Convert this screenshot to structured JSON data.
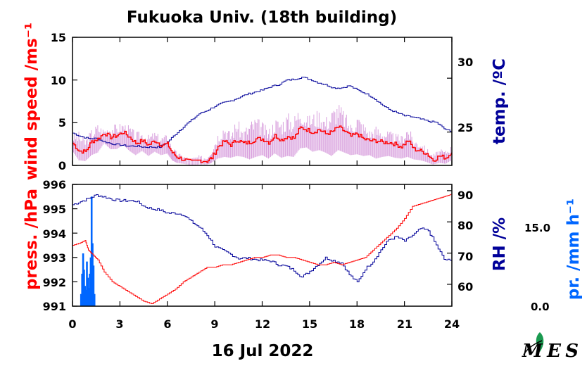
{
  "colors": {
    "wind_mean": "#ff0000",
    "wind_gust": "#d9a0de",
    "temperature": "#000099",
    "pressure": "#ff0000",
    "humidity": "#000099",
    "precipitation": "#0066ff"
  },
  "logo": {
    "icon": "leaf-logo-icon",
    "text": "MES"
  },
  "chart_data": [
    {
      "type": "line",
      "title": "Fukuoka Univ. (18th building)",
      "date_label": "16 Jul 2022",
      "xlabel": "",
      "xlim": [
        0,
        24
      ],
      "xticks": [
        0,
        3,
        6,
        9,
        12,
        15,
        18,
        21,
        24
      ],
      "xtick_labels": [
        "0",
        "3",
        "6",
        "9",
        "12",
        "15",
        "18",
        "21",
        "24"
      ],
      "ylabel": "wind speed /ms⁻¹",
      "ylim": [
        0,
        15
      ],
      "yticks": [
        0,
        5,
        10,
        15
      ],
      "ytick_labels": [
        "0",
        "5",
        "10",
        "15"
      ],
      "y2label": "temp. /ºC",
      "y2lim": [
        21.9,
        33.8
      ],
      "y2ticks": [
        25,
        30
      ],
      "y2tick_labels": [
        "25",
        "30"
      ],
      "series": [
        {
          "role": "wind_mean",
          "axis": "left",
          "x": [
            0,
            0.4,
            0.8,
            1.2,
            1.6,
            2.0,
            2.4,
            2.8,
            3.2,
            3.6,
            4.0,
            4.4,
            4.8,
            5.2,
            5.6,
            6.0,
            6.3,
            6.6,
            7.0,
            7.5,
            8.0,
            8.5,
            8.8,
            9.2,
            9.6,
            10.0,
            10.4,
            10.8,
            11.2,
            11.6,
            12.0,
            12.4,
            12.8,
            13.2,
            13.6,
            14.0,
            14.4,
            14.8,
            15.2,
            15.6,
            16.0,
            16.4,
            16.8,
            17.2,
            17.6,
            18.0,
            18.4,
            18.8,
            19.2,
            19.6,
            20.0,
            20.4,
            20.8,
            21.2,
            21.6,
            22.0,
            22.4,
            22.8,
            23.2,
            23.6,
            24.0
          ],
          "values": [
            2.6,
            1.7,
            1.6,
            2.8,
            3.1,
            3.8,
            3.3,
            3.5,
            3.9,
            3.3,
            2.6,
            2.9,
            2.4,
            2.9,
            2.4,
            2.5,
            1.5,
            1.0,
            0.7,
            0.4,
            0.6,
            0.5,
            0.9,
            2.2,
            2.8,
            2.4,
            3.0,
            2.6,
            2.7,
            3.1,
            3.1,
            2.7,
            3.5,
            3.0,
            3.4,
            3.2,
            4.4,
            4.2,
            3.9,
            4.2,
            3.7,
            3.9,
            4.5,
            4.0,
            3.4,
            3.7,
            3.1,
            2.9,
            2.9,
            2.7,
            2.7,
            2.5,
            2.2,
            2.9,
            1.9,
            1.7,
            1.4,
            0.6,
            1.1,
            0.9,
            1.5
          ]
        },
        {
          "role": "wind_gust_range",
          "axis": "left",
          "x": [
            0,
            0.4,
            0.8,
            1.2,
            1.6,
            2.0,
            2.4,
            2.8,
            3.2,
            3.6,
            4.0,
            4.4,
            4.8,
            5.2,
            5.6,
            6.0,
            6.3,
            6.6,
            7.0,
            7.5,
            8.0,
            8.5,
            8.8,
            9.2,
            9.6,
            10.0,
            10.4,
            10.8,
            11.2,
            11.6,
            12.0,
            12.4,
            12.8,
            13.2,
            13.6,
            14.0,
            14.4,
            14.8,
            15.2,
            15.6,
            16.0,
            16.4,
            16.8,
            17.2,
            17.6,
            18.0,
            18.4,
            18.8,
            19.2,
            19.6,
            20.0,
            20.4,
            20.8,
            21.2,
            21.6,
            22.0,
            22.4,
            22.8,
            23.2,
            23.6,
            24.0
          ],
          "high": [
            3.6,
            4.0,
            3.2,
            4.3,
            5.0,
            4.3,
            4.8,
            4.9,
            5.1,
            4.7,
            4.0,
            4.0,
            3.6,
            4.0,
            3.5,
            3.7,
            2.3,
            1.6,
            1.2,
            0.9,
            1.2,
            1.0,
            2.0,
            4.0,
            5.1,
            4.0,
            5.6,
            4.2,
            5.3,
            5.8,
            5.2,
            4.3,
            5.7,
            5.6,
            6.3,
            5.9,
            7.3,
            5.8,
            6.3,
            6.7,
            5.8,
            6.8,
            7.6,
            6.5,
            5.1,
            6.3,
            5.2,
            4.3,
            4.8,
            4.3,
            4.1,
            3.8,
            3.6,
            4.8,
            3.2,
            2.9,
            2.1,
            1.3,
            1.9,
            1.8,
            2.4
          ],
          "low": [
            1.7,
            0.6,
            0.5,
            1.2,
            1.5,
            2.6,
            1.9,
            1.9,
            2.4,
            1.7,
            1.2,
            1.7,
            1.1,
            1.6,
            1.2,
            1.4,
            0.6,
            0.3,
            0.2,
            0.0,
            0.1,
            0.1,
            0.3,
            0.8,
            1.0,
            0.9,
            1.1,
            1.0,
            0.7,
            1.0,
            1.2,
            0.8,
            1.4,
            0.9,
            1.1,
            1.0,
            2.0,
            2.1,
            1.6,
            1.8,
            1.5,
            1.1,
            1.8,
            1.5,
            1.2,
            1.3,
            1.1,
            1.2,
            0.8,
            1.0,
            1.1,
            0.9,
            0.8,
            1.0,
            0.7,
            0.6,
            0.4,
            0.1,
            0.3,
            0.2,
            0.6
          ]
        },
        {
          "role": "temperature",
          "axis": "right",
          "x": [
            0,
            0.5,
            1.0,
            1.5,
            2.0,
            2.5,
            3.0,
            3.5,
            4.0,
            4.5,
            5.0,
            5.5,
            6.0,
            6.5,
            7.0,
            7.5,
            8.0,
            8.5,
            9.0,
            9.5,
            10.0,
            10.5,
            11.0,
            11.5,
            12.0,
            12.5,
            13.0,
            13.5,
            14.0,
            14.5,
            15.0,
            15.5,
            16.0,
            16.5,
            17.0,
            17.5,
            18.0,
            18.5,
            19.0,
            19.5,
            20.0,
            20.5,
            21.0,
            21.5,
            22.0,
            22.5,
            23.0,
            23.5,
            24.0
          ],
          "values": [
            24.9,
            24.6,
            24.4,
            24.4,
            24.1,
            23.9,
            23.8,
            23.7,
            23.7,
            23.6,
            23.6,
            23.6,
            24.1,
            24.8,
            25.5,
            26.1,
            26.7,
            27.0,
            27.4,
            27.7,
            27.9,
            28.2,
            28.5,
            28.7,
            28.9,
            29.2,
            29.4,
            29.8,
            29.9,
            30.1,
            29.9,
            29.6,
            29.4,
            29.1,
            29.1,
            29.3,
            28.9,
            28.6,
            28.2,
            27.6,
            27.1,
            26.8,
            26.5,
            26.4,
            26.2,
            26.0,
            25.9,
            25.3,
            25.0
          ]
        }
      ]
    },
    {
      "type": "line",
      "xlabel": "",
      "xlim": [
        0,
        24
      ],
      "xticks": [
        0,
        3,
        6,
        9,
        12,
        15,
        18,
        21,
        24
      ],
      "xtick_labels": [
        "0",
        "3",
        "6",
        "9",
        "12",
        "15",
        "18",
        "21",
        "24"
      ],
      "ylabel": "press. /hPa",
      "ylim": [
        991,
        996
      ],
      "yticks": [
        991,
        992,
        993,
        994,
        995,
        996
      ],
      "ytick_labels": [
        "991",
        "992",
        "993",
        "994",
        "995",
        "996"
      ],
      "y2label": "RH /%",
      "y2lim": [
        53,
        92
      ],
      "y2ticks": [
        60,
        70,
        80,
        90
      ],
      "y2tick_labels": [
        "60",
        "70",
        "80",
        "90"
      ],
      "y3label": "pr. /mm h⁻¹",
      "y3tick_labels": [
        "0.0",
        "15.0"
      ],
      "series": [
        {
          "role": "pressure",
          "axis": "left",
          "x": [
            0,
            0.5,
            0.8,
            1.0,
            1.3,
            1.6,
            2.0,
            2.5,
            3.0,
            3.5,
            4.0,
            4.5,
            5.0,
            5.5,
            6.0,
            6.5,
            7.0,
            7.5,
            8.0,
            8.5,
            9.0,
            9.5,
            10.0,
            10.5,
            11.0,
            11.5,
            12.0,
            12.5,
            13.0,
            13.5,
            14.0,
            14.5,
            15.0,
            15.5,
            16.0,
            16.5,
            17.0,
            17.5,
            18.0,
            18.5,
            19.0,
            19.5,
            20.0,
            20.5,
            21.0,
            21.5,
            22.0,
            22.5,
            23.0,
            23.5,
            24.0
          ],
          "values": [
            993.5,
            993.6,
            993.7,
            993.3,
            993.1,
            992.9,
            992.4,
            992.0,
            991.8,
            991.6,
            991.4,
            991.2,
            991.1,
            991.3,
            991.5,
            991.7,
            992.0,
            992.2,
            992.4,
            992.6,
            992.6,
            992.7,
            992.7,
            992.8,
            992.9,
            993.0,
            993.0,
            993.1,
            993.1,
            993.0,
            993.0,
            992.9,
            992.8,
            992.7,
            992.7,
            992.8,
            992.7,
            992.8,
            992.9,
            993.0,
            993.3,
            993.6,
            993.9,
            994.2,
            994.6,
            995.1,
            995.2,
            995.3,
            995.4,
            995.5,
            995.6
          ]
        },
        {
          "role": "humidity",
          "axis": "right",
          "x": [
            0,
            0.5,
            1.0,
            1.5,
            2.0,
            2.5,
            3.0,
            3.5,
            4.0,
            4.5,
            5.0,
            5.5,
            6.0,
            6.5,
            7.0,
            7.5,
            8.0,
            8.5,
            9.0,
            9.5,
            10.0,
            10.5,
            11.0,
            11.5,
            12.0,
            12.5,
            13.0,
            13.5,
            14.0,
            14.5,
            15.0,
            15.5,
            16.0,
            16.5,
            17.0,
            17.5,
            18.0,
            18.5,
            19.0,
            19.5,
            20.0,
            20.5,
            21.0,
            21.5,
            22.0,
            22.5,
            23.0,
            23.5,
            24.0
          ],
          "values": [
            85.5,
            86.5,
            87.5,
            88.6,
            88.0,
            87.2,
            86.8,
            86.8,
            86.7,
            85.0,
            84.2,
            83.8,
            82.8,
            82.8,
            82.3,
            80.1,
            78.3,
            75.8,
            72.1,
            70.8,
            69.6,
            68.3,
            68.4,
            68.0,
            67.7,
            67.5,
            66.3,
            65.8,
            64.5,
            62.3,
            64.2,
            66.3,
            68.5,
            67.6,
            66.9,
            63.1,
            60.6,
            64.9,
            67.4,
            71.1,
            74.3,
            75.2,
            73.8,
            75.7,
            77.8,
            77.2,
            72.5,
            68.0,
            67.5
          ]
        },
        {
          "role": "precipitation",
          "axis": "right-outer",
          "type": "bar",
          "x": [
            0.55,
            0.62,
            0.68,
            0.74,
            0.8,
            0.86,
            0.92,
            0.98,
            1.04,
            1.1,
            1.16,
            1.22,
            1.28,
            1.34,
            1.4
          ],
          "values": [
            3.0,
            8.0,
            13.0,
            9.0,
            5.0,
            4.0,
            11.0,
            7.0,
            4.5,
            8.0,
            12.0,
            27.0,
            15.5,
            10.0,
            3.0
          ]
        }
      ]
    }
  ]
}
